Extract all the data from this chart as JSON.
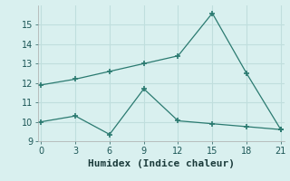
{
  "xlabel": "Humidex (Indice chaleur)",
  "x": [
    0,
    3,
    6,
    9,
    12,
    15,
    18,
    21
  ],
  "line1_y": [
    11.9,
    12.2,
    12.6,
    13.0,
    13.4,
    15.6,
    12.5,
    9.6
  ],
  "line2_y": [
    10.0,
    10.3,
    9.35,
    11.7,
    10.05,
    9.9,
    9.75,
    9.6
  ],
  "line_color": "#2a7a70",
  "bg_color": "#d9f0ef",
  "grid_color": "#c0dedd",
  "xlim": [
    0,
    21
  ],
  "ylim": [
    9,
    16
  ],
  "xticks": [
    0,
    3,
    6,
    9,
    12,
    15,
    18,
    21
  ],
  "yticks": [
    9,
    10,
    11,
    12,
    13,
    14,
    15
  ],
  "tick_fontsize": 7,
  "label_fontsize": 8
}
